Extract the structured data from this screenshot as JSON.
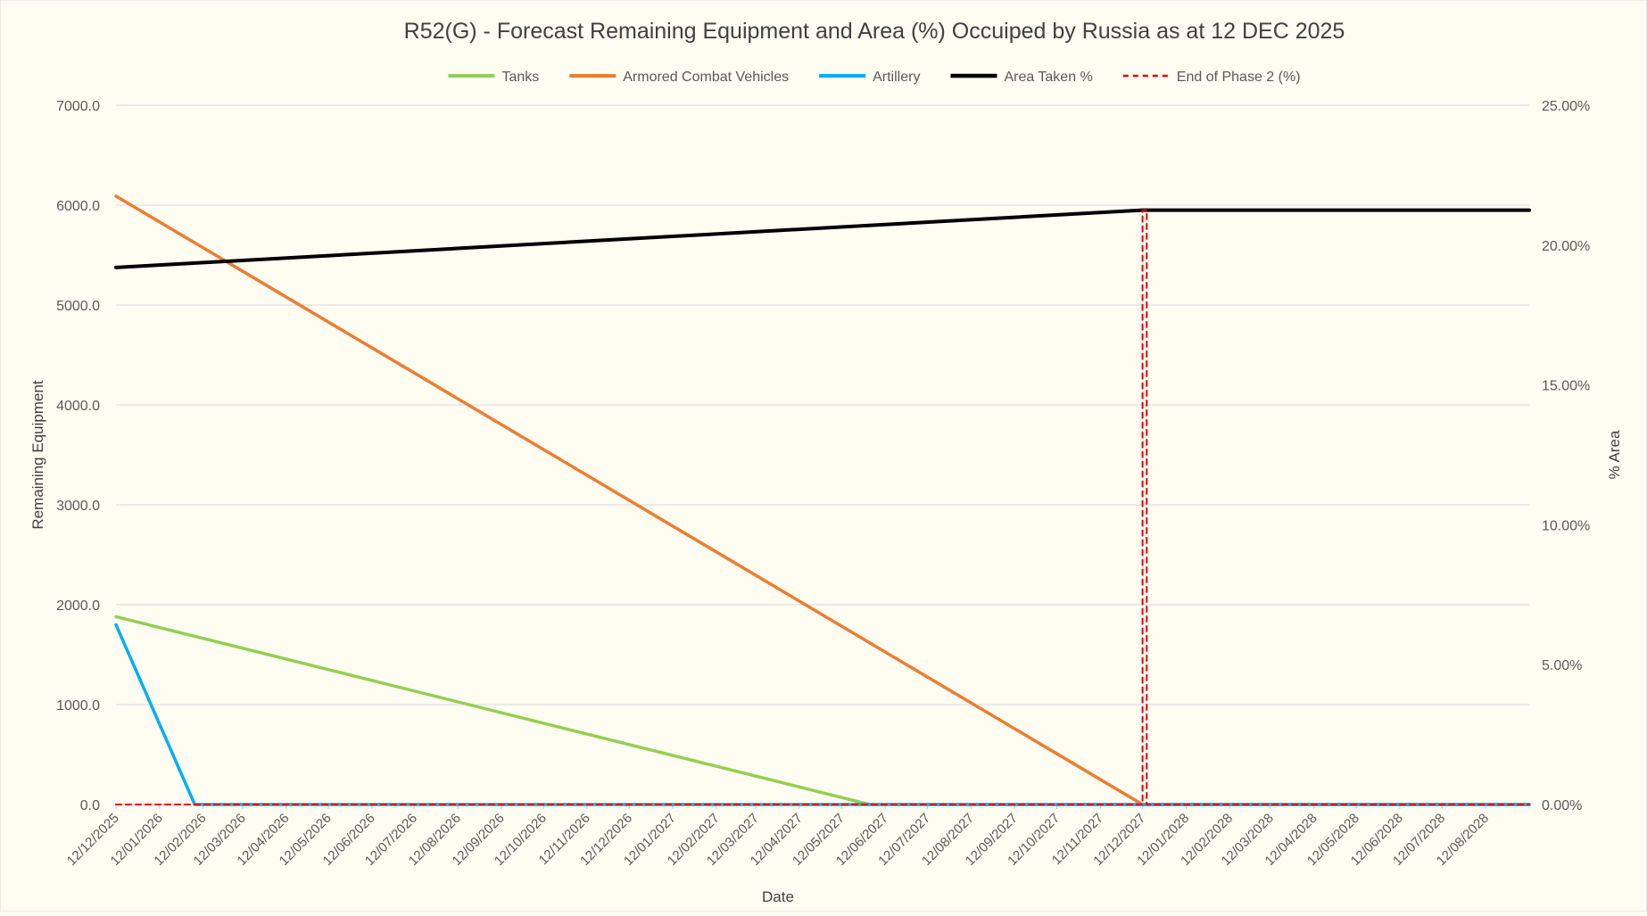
{
  "chart_data": {
    "type": "line",
    "title": "R52(G) - Forecast Remaining Equipment and Area (%) Occuiped by Russia as at 12 DEC 2025",
    "xlabel": "Date",
    "ylabel": "Remaining Equipment",
    "y2label": "% Area",
    "ylim": [
      0,
      7000
    ],
    "y2lim": [
      0,
      25
    ],
    "xlim": [
      "2025-12-12",
      "2028-09-12"
    ],
    "y_ticks": [
      "0.0",
      "1000.0",
      "2000.0",
      "3000.0",
      "4000.0",
      "5000.0",
      "6000.0",
      "7000.0"
    ],
    "y2_ticks": [
      "0.00%",
      "5.00%",
      "10.00%",
      "15.00%",
      "20.00%",
      "25.00%"
    ],
    "x_ticks": [
      "12/12/2025",
      "12/01/2026",
      "12/02/2026",
      "12/03/2026",
      "12/04/2026",
      "12/05/2026",
      "12/06/2026",
      "12/07/2026",
      "12/08/2026",
      "12/09/2026",
      "12/10/2026",
      "12/11/2026",
      "12/12/2026",
      "12/01/2027",
      "12/02/2027",
      "12/03/2027",
      "12/04/2027",
      "12/05/2027",
      "12/06/2027",
      "12/07/2027",
      "12/08/2027",
      "12/09/2027",
      "12/10/2027",
      "12/11/2027",
      "12/12/2027",
      "12/01/2028",
      "12/02/2028",
      "12/03/2028",
      "12/04/2028",
      "12/05/2028",
      "12/06/2028",
      "12/07/2028",
      "12/08/2028"
    ],
    "grid": true,
    "legend": "top",
    "series": [
      {
        "name": "Tanks",
        "axis": "left",
        "color": "#92d050",
        "width": 3.5,
        "dash": "",
        "points": [
          [
            "2025-12-12",
            1880
          ],
          [
            "2027-06-01",
            0
          ],
          [
            "2028-09-12",
            0
          ]
        ]
      },
      {
        "name": "Armored Combat Vehicles",
        "axis": "left",
        "color": "#ed7d31",
        "width": 3.5,
        "dash": "",
        "points": [
          [
            "2025-12-12",
            6090
          ],
          [
            "2027-12-12",
            0
          ],
          [
            "2028-09-12",
            0
          ]
        ]
      },
      {
        "name": "Artillery",
        "axis": "left",
        "color": "#00b0f0",
        "width": 3.5,
        "dash": "",
        "points": [
          [
            "2025-12-12",
            1800
          ],
          [
            "2026-02-06",
            0
          ],
          [
            "2028-09-12",
            0
          ]
        ]
      },
      {
        "name": "Area Taken %",
        "axis": "right",
        "color": "#000000",
        "width": 4,
        "dash": "",
        "points": [
          [
            "2025-12-12",
            19.2
          ],
          [
            "2027-12-12",
            21.25
          ],
          [
            "2028-09-12",
            21.25
          ]
        ]
      },
      {
        "name": "End of Phase 2 (%)",
        "axis": "right",
        "color": "#e60000",
        "width": 2,
        "dash": "6,5",
        "points": [
          [
            "2025-12-12",
            0
          ],
          [
            "2027-12-12",
            0
          ],
          [
            "2027-12-12",
            21.25
          ],
          [
            "2027-12-15",
            21.25
          ],
          [
            "2027-12-15",
            0
          ],
          [
            "2028-09-12",
            0
          ]
        ]
      }
    ]
  }
}
